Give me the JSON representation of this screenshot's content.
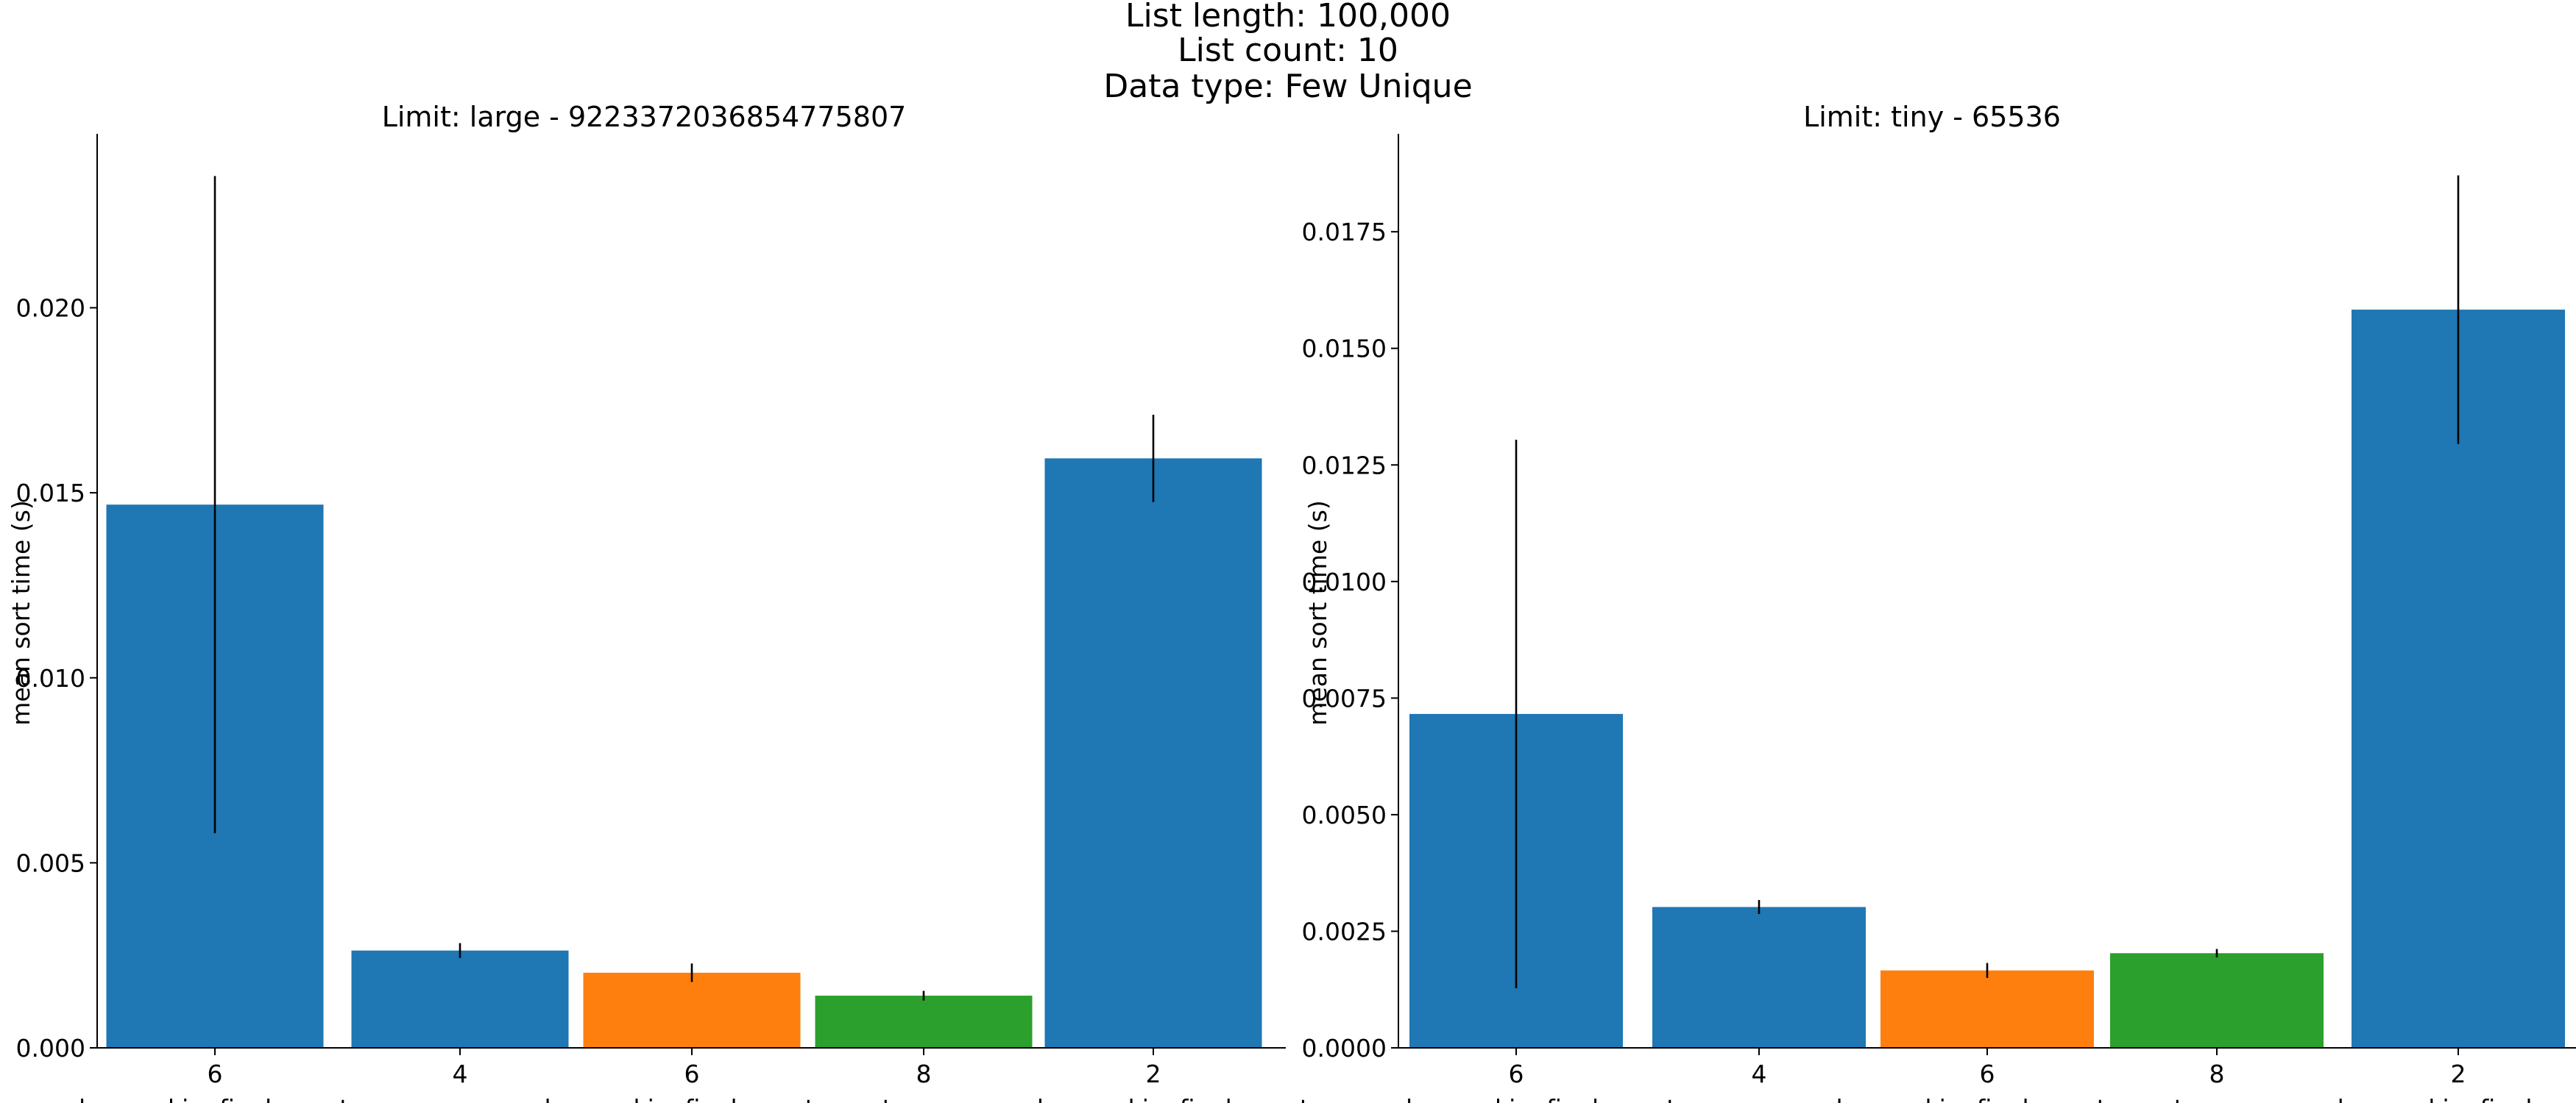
{
  "figure": {
    "suptitle_lines": [
      "List length: 100,000",
      "List count: 10",
      "Data type: Few Unique"
    ]
  },
  "chart_data": [
    {
      "type": "bar",
      "title": "Limit: large -  9223372036854775807",
      "ylabel": "mean sort time (s)",
      "xlabel": "",
      "ylim": [
        0,
        0.0247
      ],
      "yticks": [
        "0.000",
        "0.005",
        "0.010",
        "0.015",
        "0.020"
      ],
      "grid": false,
      "categories": [
        "6",
        "4",
        "6",
        "8",
        "2"
      ],
      "group_labels": [
        "msd_c_workingfinalnosort",
        "msd_c_workingfinalnosortnosort",
        "msd_p_workingfinalnosortr"
      ],
      "values": [
        0.01468,
        0.00263,
        0.00203,
        0.00141,
        0.01593
      ],
      "errors": [
        0.00888,
        0.0002,
        0.00025,
        0.00013,
        0.00118
      ],
      "colors": [
        "#1f77b4",
        "#1f77b4",
        "#ff7f0e",
        "#2ca02c",
        "#1f77b4"
      ]
    },
    {
      "type": "bar",
      "title": "Limit: tiny -  65536",
      "ylabel": "mean sort time (s)",
      "xlabel": "",
      "ylim": [
        0,
        0.0196
      ],
      "yticks": [
        "0.0000",
        "0.0025",
        "0.0050",
        "0.0075",
        "0.0100",
        "0.0125",
        "0.0150",
        "0.0175"
      ],
      "grid": false,
      "categories": [
        "6",
        "4",
        "6",
        "8",
        "2"
      ],
      "group_labels": [
        "msd_c_workingfinalnosort",
        "msd_c_workingfinalnosortnosort",
        "msd_p_workingfinalnosort"
      ],
      "values": [
        0.00716,
        0.00302,
        0.00166,
        0.00203,
        0.01583
      ],
      "errors": [
        0.00588,
        0.00015,
        0.00016,
        9e-05,
        0.00288
      ],
      "colors": [
        "#1f77b4",
        "#1f77b4",
        "#ff7f0e",
        "#2ca02c",
        "#1f77b4"
      ]
    }
  ]
}
